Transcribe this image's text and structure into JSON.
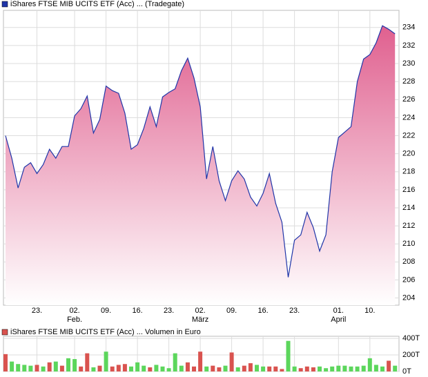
{
  "chart_data": [
    {
      "type": "area",
      "legend": "iShares FTSE MIB UCITS ETF (Acc) ... (Tradegate)",
      "color": "#1f35a8",
      "fill_color": "#e0608f",
      "categories": [
        null,
        null,
        null,
        null,
        null,
        "23.",
        null,
        null,
        null,
        null,
        null,
        "02.",
        null,
        null,
        null,
        null,
        "09.",
        null,
        null,
        null,
        null,
        "16.",
        null,
        null,
        null,
        null,
        "23.",
        null,
        null,
        null,
        null,
        "02.",
        null,
        null,
        null,
        null,
        "09.",
        null,
        null,
        null,
        null,
        "16.",
        null,
        null,
        null,
        null,
        "23.",
        null,
        null,
        null,
        null,
        null,
        null,
        "01.",
        null,
        null,
        null,
        null,
        "10.",
        null,
        null,
        null,
        null
      ],
      "months": [
        null,
        null,
        null,
        null,
        null,
        null,
        null,
        null,
        null,
        null,
        null,
        "Feb.",
        null,
        null,
        null,
        null,
        null,
        null,
        null,
        null,
        null,
        null,
        null,
        null,
        null,
        null,
        null,
        null,
        null,
        null,
        null,
        "März",
        null,
        null,
        null,
        null,
        null,
        null,
        null,
        null,
        null,
        null,
        null,
        null,
        null,
        null,
        null,
        null,
        null,
        null,
        null,
        null,
        null,
        "April",
        null,
        null,
        null,
        null,
        null,
        null,
        null,
        null,
        null
      ],
      "values": [
        222.0,
        219.5,
        216.2,
        218.5,
        219.0,
        217.8,
        218.8,
        220.5,
        219.5,
        220.8,
        220.8,
        224.2,
        225.0,
        226.4,
        222.3,
        223.8,
        227.5,
        227.0,
        226.7,
        224.5,
        220.5,
        221.0,
        222.8,
        225.2,
        223.0,
        226.3,
        226.8,
        227.2,
        229.2,
        230.6,
        228.4,
        225.2,
        217.2,
        220.8,
        217.0,
        214.8,
        217.0,
        218.1,
        217.2,
        215.2,
        214.2,
        215.6,
        217.8,
        214.5,
        212.4,
        206.3,
        210.4,
        211.0,
        213.5,
        211.8,
        209.2,
        211.0,
        218.0,
        221.8,
        222.4,
        223.0,
        228.0,
        230.5,
        231.0,
        232.3,
        234.2,
        233.8,
        233.3
      ],
      "ylim": [
        203.2,
        235.9
      ],
      "yticks": [
        204,
        206,
        208,
        210,
        212,
        214,
        216,
        218,
        220,
        222,
        224,
        226,
        228,
        230,
        232,
        234
      ],
      "grid": true
    },
    {
      "type": "bar",
      "legend": "iShares FTSE MIB UCITS ETF (Acc) ... Volumen in Euro",
      "color": "#d9534f",
      "values": [
        210,
        120,
        90,
        80,
        70,
        80,
        60,
        110,
        120,
        70,
        160,
        150,
        60,
        220,
        50,
        70,
        240,
        60,
        80,
        90,
        60,
        110,
        70,
        50,
        80,
        60,
        40,
        220,
        70,
        110,
        60,
        240,
        60,
        70,
        50,
        70,
        230,
        50,
        70,
        100,
        80,
        60,
        60,
        60,
        30,
        370,
        60,
        40,
        60,
        50,
        60,
        40,
        60,
        70,
        70,
        60,
        60,
        70,
        160,
        80,
        60,
        130,
        70
      ],
      "bar_colors": [
        "#d9534f",
        "#5cd65c",
        "#5cd65c",
        "#5cd65c",
        "#5cd65c",
        "#d9534f",
        "#5cd65c",
        "#d9534f",
        "#5cd65c",
        "#d9534f",
        "#5cd65c",
        "#5cd65c",
        "#d9534f",
        "#d9534f",
        "#5cd65c",
        "#d9534f",
        "#5cd65c",
        "#d9534f",
        "#d9534f",
        "#d9534f",
        "#5cd65c",
        "#5cd65c",
        "#5cd65c",
        "#d9534f",
        "#5cd65c",
        "#5cd65c",
        "#5cd65c",
        "#5cd65c",
        "#5cd65c",
        "#d9534f",
        "#d9534f",
        "#d9534f",
        "#5cd65c",
        "#d9534f",
        "#d9534f",
        "#5cd65c",
        "#d9534f",
        "#5cd65c",
        "#d9534f",
        "#d9534f",
        "#5cd65c",
        "#5cd65c",
        "#d9534f",
        "#d9534f",
        "#d9534f",
        "#5cd65c",
        "#5cd65c",
        "#d9534f",
        "#d9534f",
        "#d9534f",
        "#5cd65c",
        "#5cd65c",
        "#5cd65c",
        "#5cd65c",
        "#5cd65c",
        "#5cd65c",
        "#5cd65c",
        "#5cd65c",
        "#5cd65c",
        "#5cd65c",
        "#5cd65c",
        "#d9534f",
        "#5cd65c"
      ],
      "ylim": [
        0,
        426
      ],
      "yticks": [
        {
          "value": 0,
          "label": "0T"
        },
        {
          "value": 200,
          "label": "200T"
        },
        {
          "value": 400,
          "label": "400T"
        }
      ],
      "grid": true
    }
  ]
}
